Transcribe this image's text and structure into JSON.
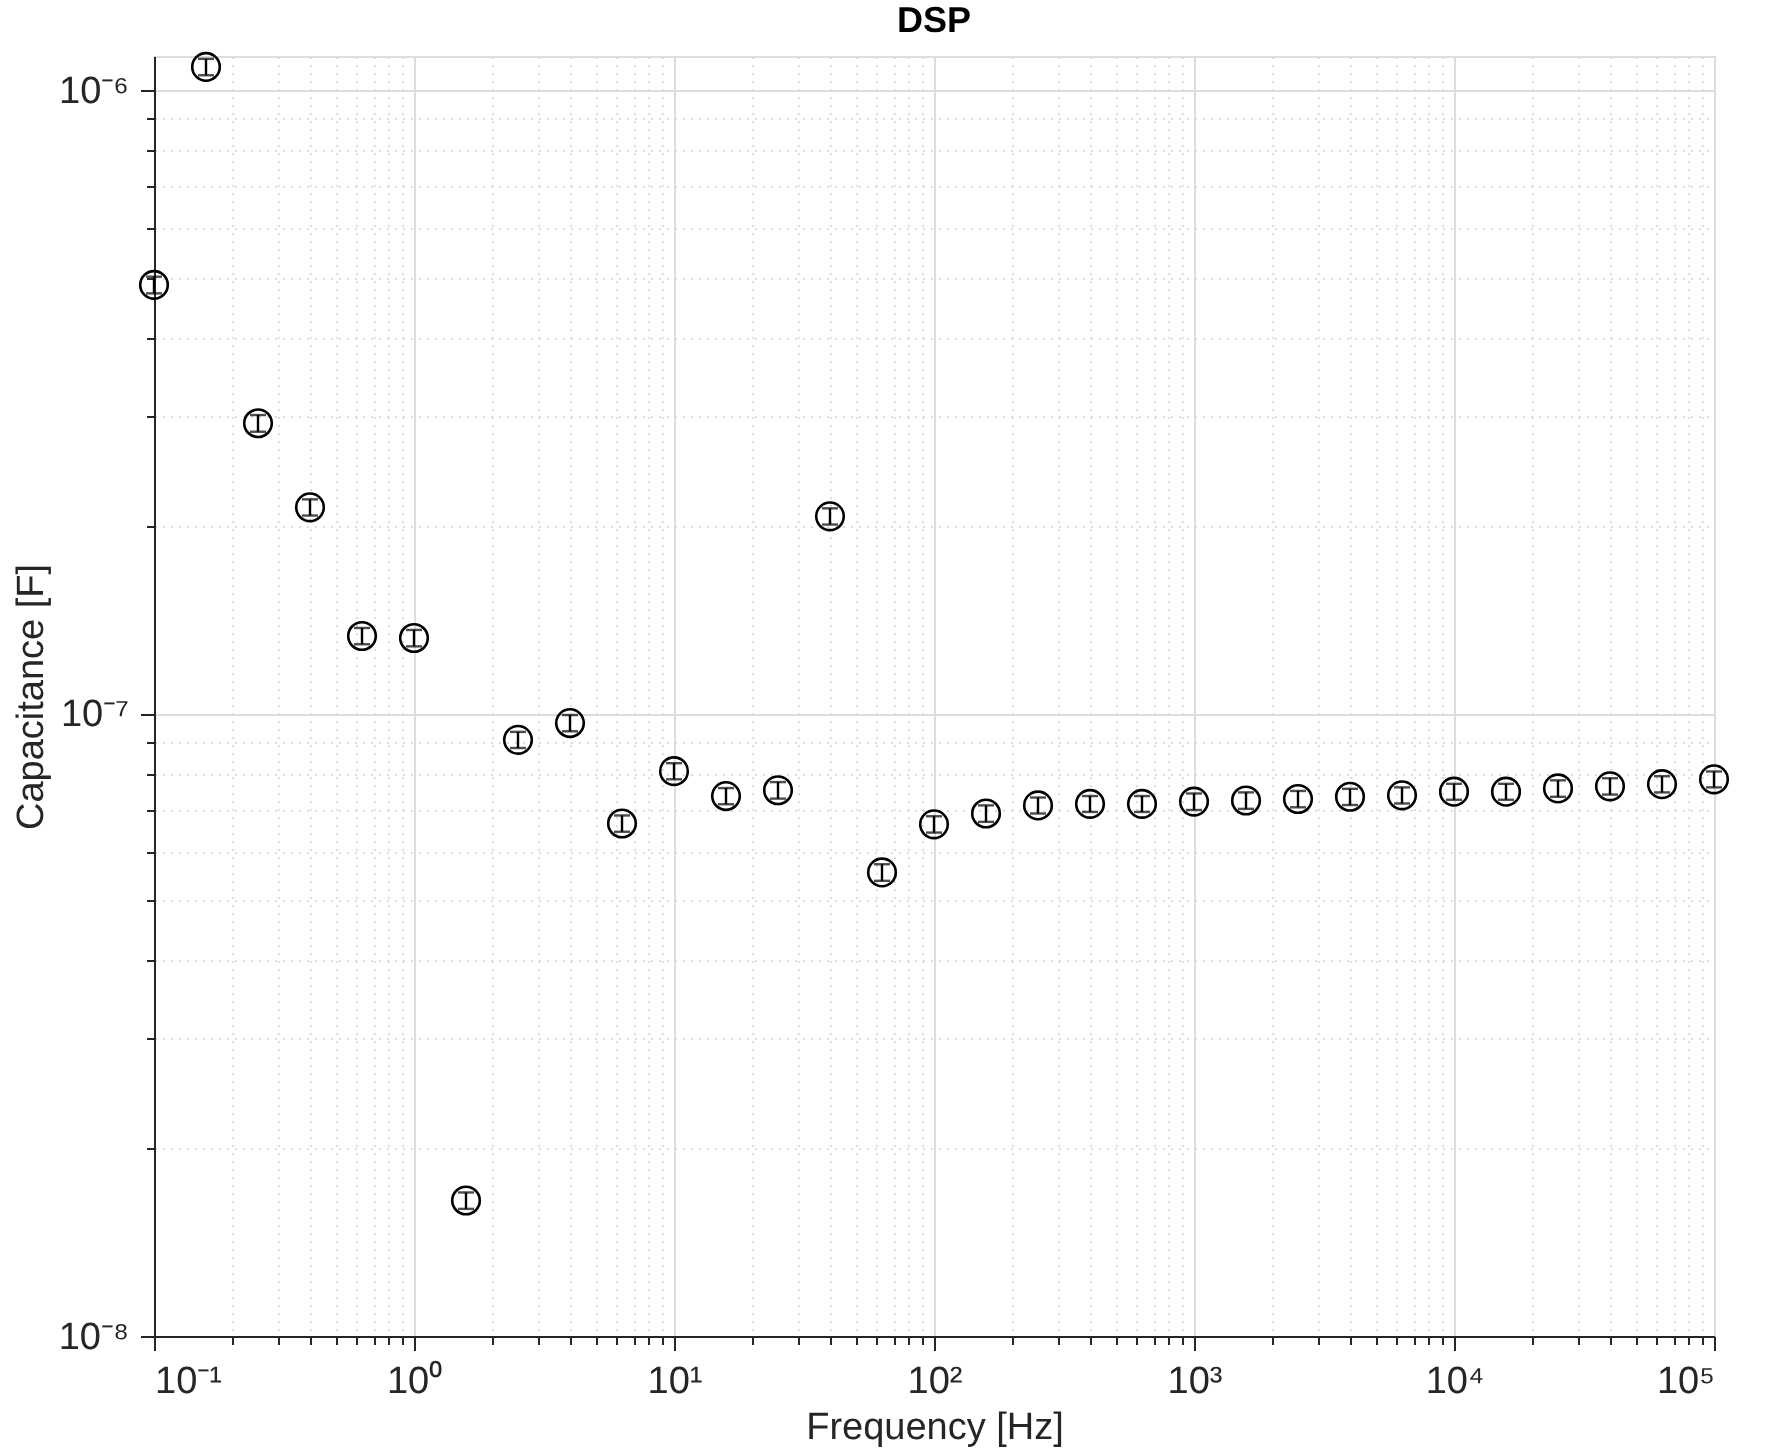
{
  "chart_data": {
    "type": "scatter",
    "title": "DSP",
    "xlabel": "Frequency [Hz]",
    "ylabel": "Capacitance [F]",
    "log": "xy",
    "grid": true,
    "marker": "circle",
    "x": [
      0.1,
      0.1585,
      0.2512,
      0.3981,
      0.631,
      1,
      1.585,
      2.512,
      3.981,
      6.31,
      10,
      15.85,
      25.12,
      39.81,
      63.1,
      100,
      158.5,
      251.2,
      398.1,
      631,
      1000,
      1585,
      2512,
      3981,
      6310,
      10000,
      15850,
      25120,
      39810,
      63100,
      100000
    ],
    "series": [
      {
        "color": "#000000",
        "values": [
          4.87e-07,
          1.09e-06,
          2.92e-07,
          2.14e-07,
          1.33e-07,
          1.32e-07,
          1.65e-08,
          9.06e-08,
          9.64e-08,
          6.65e-08,
          8.07e-08,
          7.36e-08,
          7.52e-08,
          2.07e-07,
          5.55e-08,
          6.63e-08,
          6.9e-08,
          7.11e-08,
          7.15e-08,
          7.15e-08,
          7.21e-08,
          7.24e-08,
          7.28e-08,
          7.34e-08,
          7.38e-08,
          7.48e-08,
          7.48e-08,
          7.57e-08,
          7.63e-08,
          7.69e-08,
          7.83e-08
        ],
        "errors": [
          1.5e-08,
          3.3e-08,
          9e-09,
          6.4e-09,
          4e-09,
          4e-09,
          5e-10,
          2.7e-09,
          2.9e-09,
          2e-09,
          2.4e-09,
          2.2e-09,
          2.3e-09,
          6.2e-09,
          1.7e-09,
          2e-09,
          2.1e-09,
          2.1e-09,
          2.1e-09,
          2.1e-09,
          2.2e-09,
          2.2e-09,
          2.2e-09,
          2.2e-09,
          2.2e-09,
          2.2e-09,
          2.2e-09,
          2.3e-09,
          2.3e-09,
          2.3e-09,
          2.3e-09
        ]
      }
    ],
    "xlim": [
      0.1,
      100000
    ],
    "xticks": [
      {
        "value": 0.1,
        "label": "10⁻¹"
      },
      {
        "value": 1,
        "label": "10⁰"
      },
      {
        "value": 10,
        "label": "10¹"
      },
      {
        "value": 100,
        "label": "10²"
      },
      {
        "value": 1000,
        "label": "10³"
      },
      {
        "value": 10000,
        "label": "10⁴"
      },
      {
        "value": 100000,
        "label": "10⁵"
      }
    ],
    "ylim": [
      1e-08,
      1.135e-06
    ],
    "yticks": [
      {
        "value": 1e-08,
        "label": "10⁻⁸"
      },
      {
        "value": 1e-07,
        "label": "10⁻⁷"
      },
      {
        "value": 1e-06,
        "label": "10⁻⁶"
      }
    ]
  }
}
